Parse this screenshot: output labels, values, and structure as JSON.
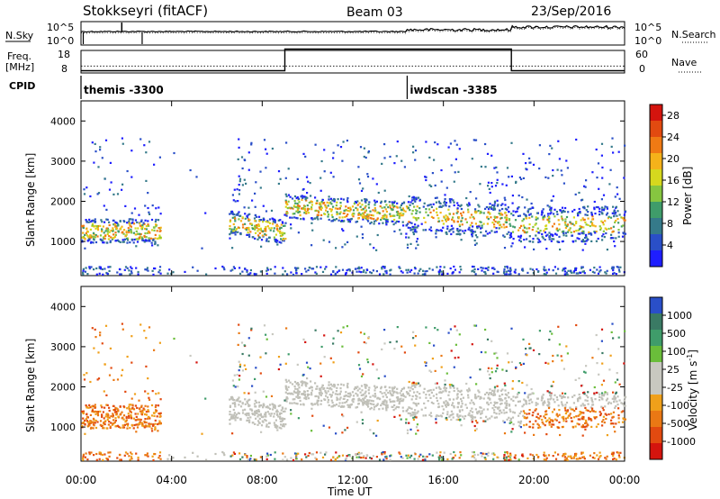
{
  "header": {
    "station": "Stokkseyri (fitACF)",
    "beam": "Beam 03",
    "date": "23/Sep/2016"
  },
  "colors": {
    "power_scale": [
      "#1e1eff",
      "#2a4fc8",
      "#357a8a",
      "#3f9c6a",
      "#86c640",
      "#d6d81e",
      "#f5b21a",
      "#f07a14",
      "#e24a10",
      "#d4140e"
    ],
    "velocity_scale": [
      "#2a4fc8",
      "#3a7a64",
      "#3f9c6a",
      "#6abd3a",
      "#c8c8c0",
      "#c8c8c0",
      "#f0a01a",
      "#ea7814",
      "#e24a10",
      "#d4140e"
    ],
    "ground_scatter": "#c0c0b8"
  },
  "chart_data": [
    {
      "type": "line",
      "name": "noise-panel",
      "left_label": "N.Sky",
      "right_label": "N.Search",
      "left_ticks": [
        "10^5",
        "10^0"
      ],
      "right_ticks": [
        "10^5",
        "10^0"
      ],
      "scale": "log"
    },
    {
      "type": "line",
      "name": "frequency-nave-panel",
      "left_label": [
        "Freq.",
        "[MHz]"
      ],
      "right_label": "Nave",
      "left_ticks": [
        "18",
        "8"
      ],
      "right_ticks": [
        "60",
        "0"
      ],
      "x": [
        0,
        9,
        9,
        19,
        19,
        24
      ],
      "freq_mhz": [
        10.8,
        10.8,
        10.8,
        10.8,
        10.8,
        10.8
      ],
      "nave": [
        0,
        0,
        60,
        60,
        0,
        0
      ],
      "xlim": [
        0,
        24
      ]
    },
    {
      "type": "table",
      "name": "cpid-panel",
      "label": "CPID",
      "segments": [
        {
          "start_hour": 0,
          "text": "themis -3300"
        },
        {
          "start_hour": 14.4,
          "text": "iwdscan -3385"
        }
      ]
    },
    {
      "type": "heatmap",
      "name": "power-panel",
      "ylabel": "Slant Range [km]",
      "colorbar_label": "Power [dB]",
      "ylim": [
        150,
        4500
      ],
      "y_ticks": [
        1000,
        2000,
        3000,
        4000
      ],
      "colorbar_ticks": [
        4,
        8,
        12,
        16,
        20,
        24,
        28
      ],
      "colorbar_range": [
        0,
        30
      ]
    },
    {
      "type": "heatmap",
      "name": "velocity-panel",
      "ylabel": "Slant Range [km]",
      "colorbar_label": "Velocity [m s",
      "colorbar_label_sup": "-1",
      "colorbar_label_end": "]",
      "ylim": [
        150,
        4500
      ],
      "y_ticks": [
        1000,
        2000,
        3000,
        4000
      ],
      "colorbar_ticks": [
        "1000",
        "500",
        "100",
        "25",
        "-25",
        "-100",
        "-500",
        "-1000"
      ]
    },
    {
      "type": "heatmap",
      "name": "time-axis",
      "xlabel": "Time UT",
      "x_tick_labels": [
        "00:00",
        "04:00",
        "08:00",
        "12:00",
        "16:00",
        "20:00",
        "00:00"
      ],
      "xlim": [
        0,
        24
      ]
    }
  ]
}
